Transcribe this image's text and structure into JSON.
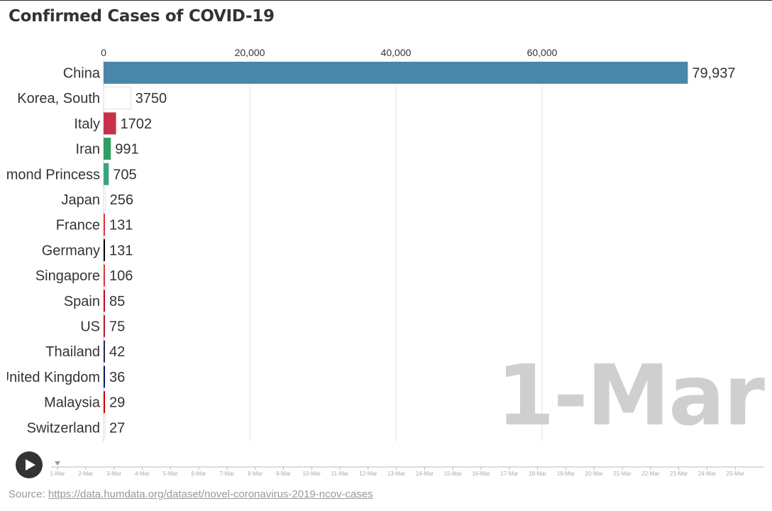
{
  "header": {
    "title": "Confirmed Cases of COVID-19"
  },
  "chart_data": {
    "type": "bar",
    "orientation": "horizontal",
    "categories": [
      "China",
      "Korea, South",
      "Italy",
      "Iran",
      "Diamond Princess",
      "Japan",
      "France",
      "Germany",
      "Singapore",
      "Spain",
      "US",
      "Thailand",
      "United Kingdom",
      "Malaysia",
      "Switzerland"
    ],
    "values": [
      79937,
      3750,
      1702,
      991,
      705,
      256,
      131,
      131,
      106,
      85,
      75,
      42,
      36,
      29,
      27
    ],
    "value_labels": [
      "79,937",
      "3750",
      "1702",
      "991",
      "705",
      "256",
      "131",
      "131",
      "106",
      "85",
      "75",
      "42",
      "36",
      "29",
      "27"
    ],
    "xlim": [
      0,
      80000
    ],
    "x_ticks": [
      0,
      20000,
      40000,
      60000
    ],
    "x_tick_labels": [
      "0",
      "20,000",
      "40,000",
      "60,000"
    ],
    "grid": true,
    "current_date": "1-Mar",
    "colors": {
      "China": "#4a86a8",
      "Korea, South": "#ffffff",
      "Italy": "#c8304a",
      "Iran": "#2e9e62",
      "Diamond Princess": "#3aa57a",
      "Japan": "#ffffff",
      "France": "#e03a3e",
      "Germany": "#000000",
      "Singapore": "#e03a3e",
      "Spain": "#c60b1e",
      "US": "#b22234",
      "Thailand": "#2d2a4a",
      "United Kingdom": "#012169",
      "Malaysia": "#cc0000",
      "Switzerland": "#ffffff"
    }
  },
  "timeline": {
    "labels": [
      "1-Mar",
      "2-Mar",
      "3-Mar",
      "4-Mar",
      "5-Mar",
      "6-Mar",
      "7-Mar",
      "8-Mar",
      "9-Mar",
      "10-Mar",
      "11-Mar",
      "12-Mar",
      "13-Mar",
      "14-Mar",
      "15-Mar",
      "16-Mar",
      "17-Mar",
      "18-Mar",
      "19-Mar",
      "20-Mar",
      "21-Mar",
      "22-Mar",
      "23-Mar",
      "24-Mar",
      "25-Mar"
    ],
    "current": "1-Mar"
  },
  "controls": {
    "play_icon": "play-icon"
  },
  "footer": {
    "source_prefix": "Source: ",
    "source_link": "https://data.humdata.org/dataset/novel-coronavirus-2019-ncov-cases"
  }
}
